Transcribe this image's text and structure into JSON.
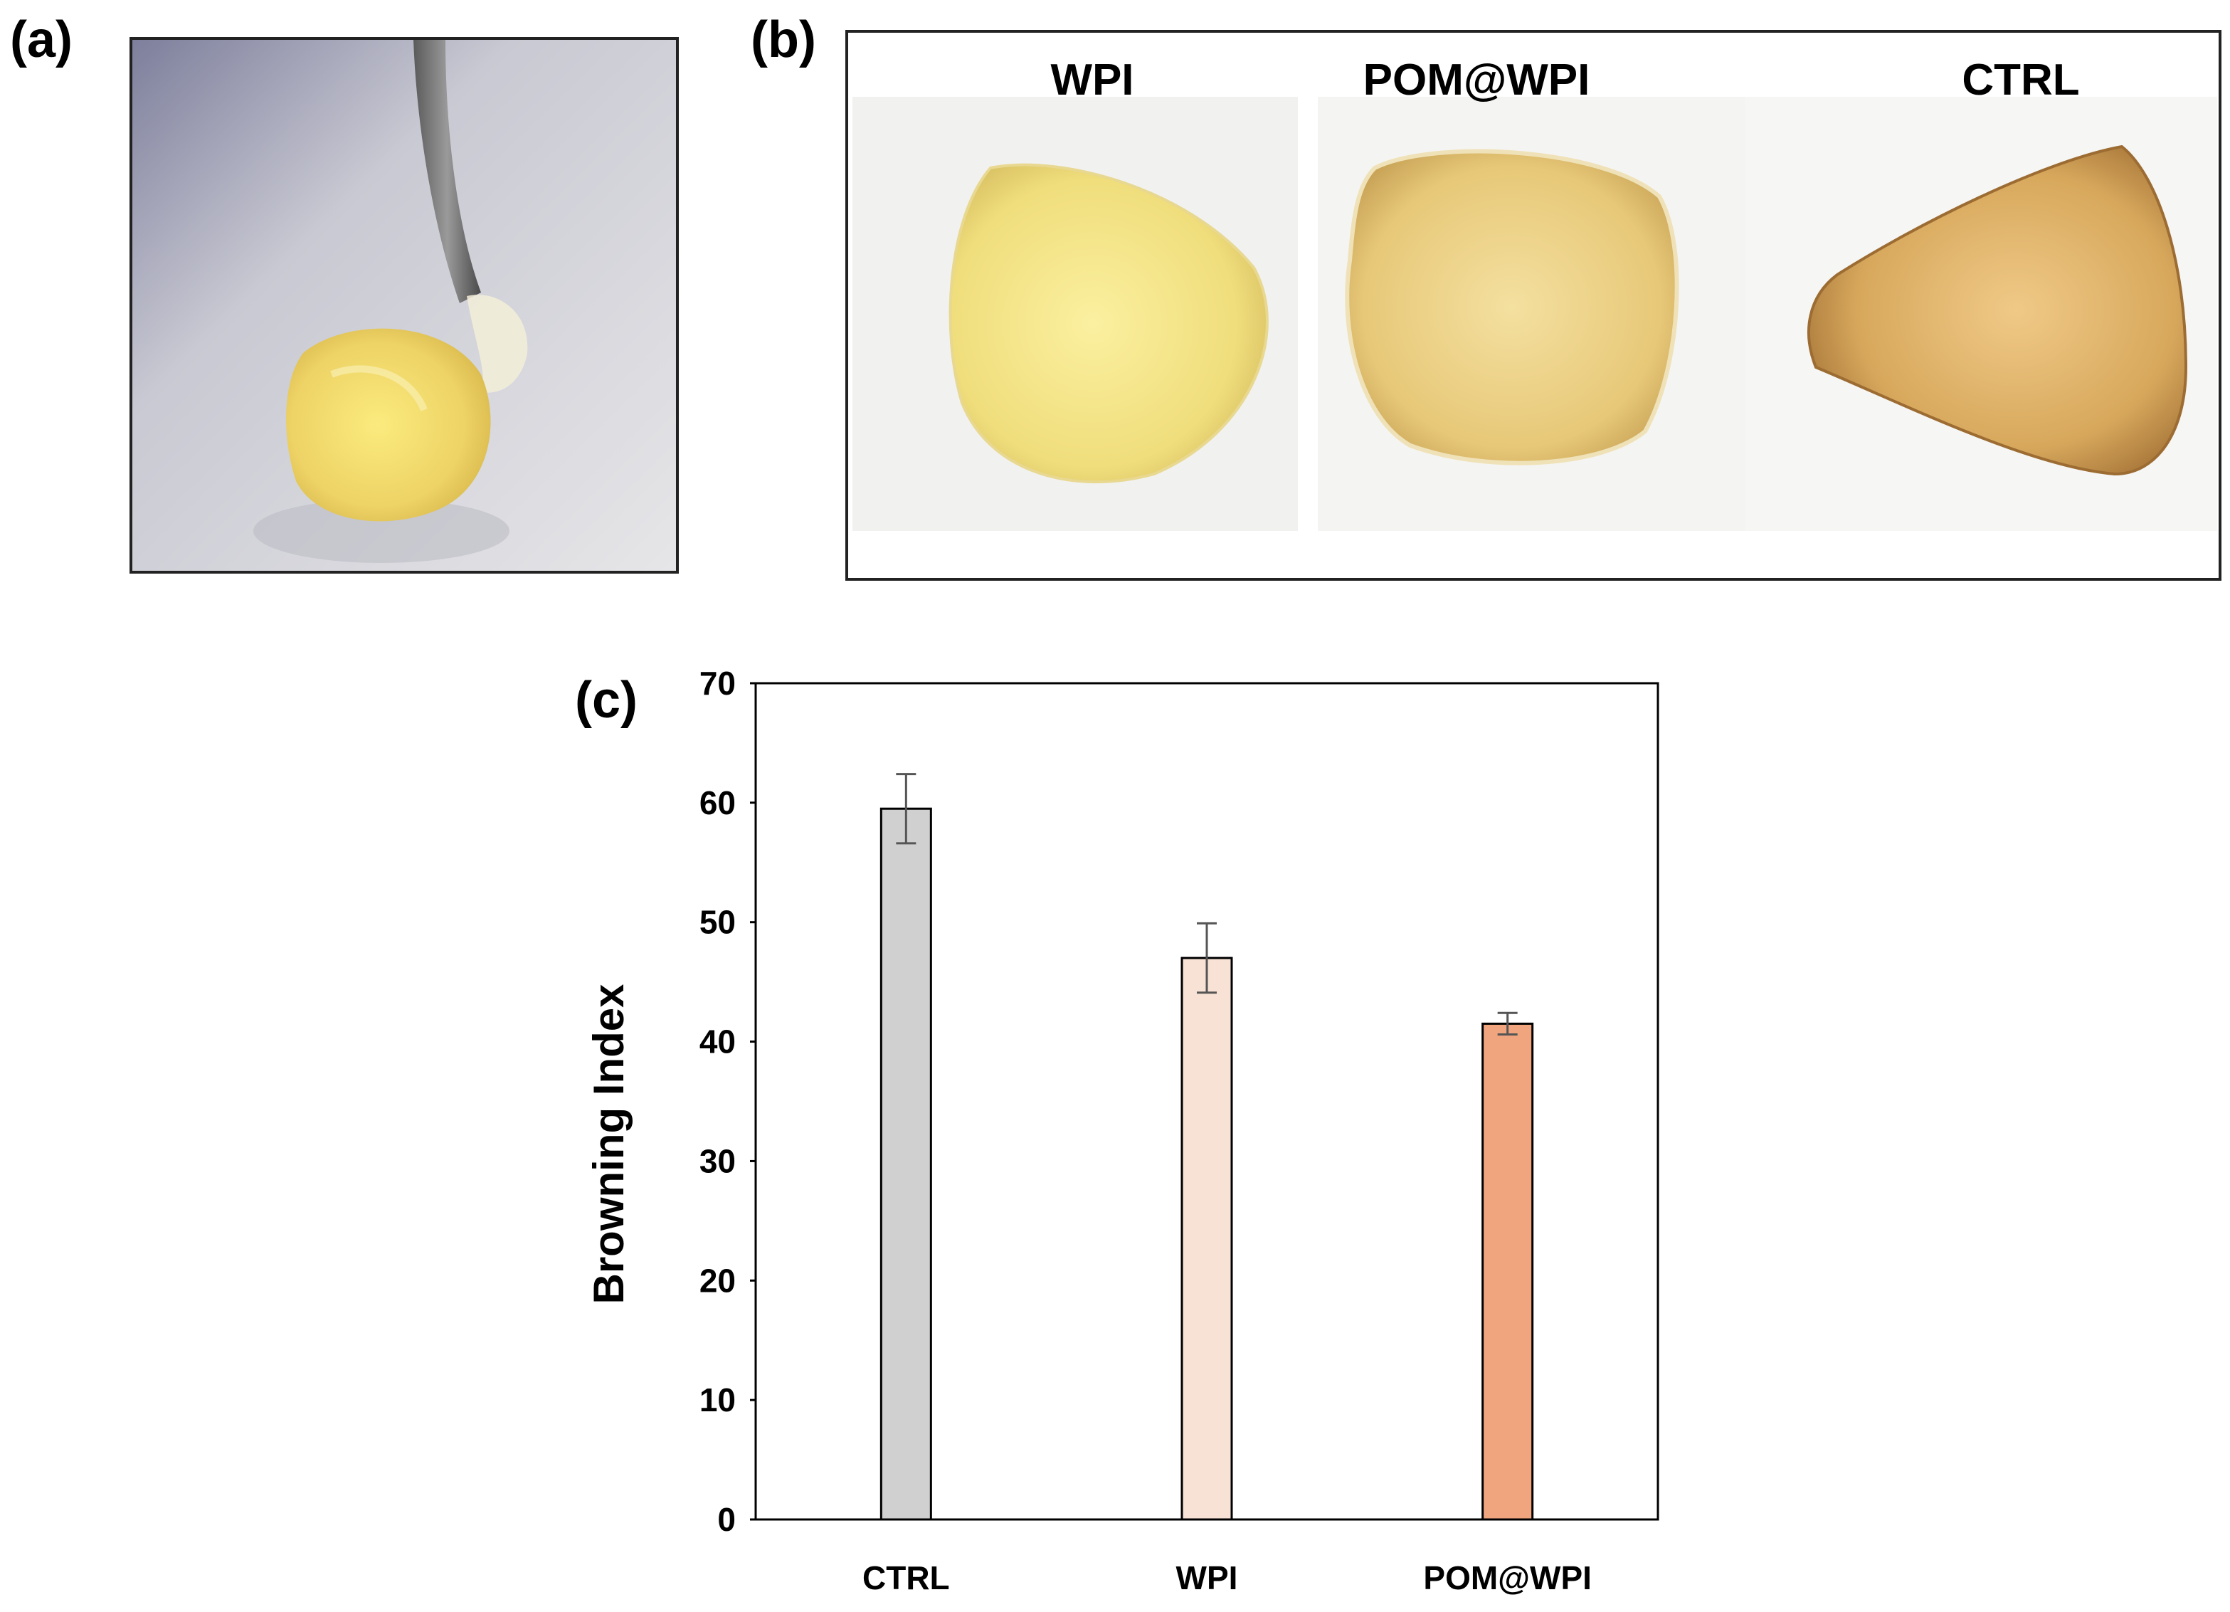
{
  "panels": {
    "a": {
      "label": "(a)"
    },
    "b": {
      "label": "(b)",
      "samples": [
        {
          "name": "WPI",
          "color": "#f0de7c"
        },
        {
          "name": "POM@WPI",
          "color": "#e7c878"
        },
        {
          "name": "CTRL",
          "color": "#d7a85c"
        }
      ]
    },
    "c": {
      "label": "(c)"
    }
  },
  "chart_data": {
    "type": "bar",
    "title": "",
    "xlabel": "",
    "ylabel": "Browning Index",
    "categories": [
      "CTRL",
      "WPI",
      "POM@WPI"
    ],
    "values": [
      59.5,
      47.0,
      41.5
    ],
    "errors": [
      2.9,
      2.9,
      0.9
    ],
    "colors": [
      "#d0d0d0",
      "#f8e2d6",
      "#f0a57f"
    ],
    "ylim": [
      0,
      70
    ],
    "yticks": [
      0,
      10,
      20,
      30,
      40,
      50,
      60,
      70
    ],
    "grid": false,
    "error_bar_color": "#555555"
  }
}
